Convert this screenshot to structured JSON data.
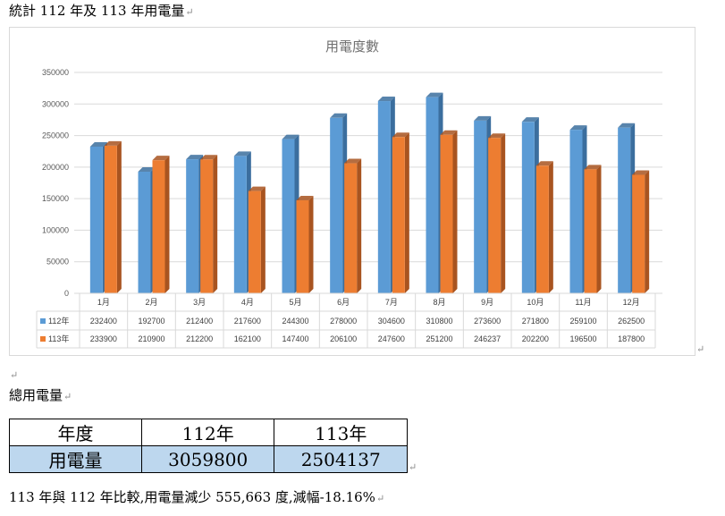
{
  "heading": "統計 112 年及 113 年用電量",
  "para_mark": "↵",
  "chart_data": {
    "type": "bar",
    "title": "用電度數",
    "categories": [
      "1月",
      "2月",
      "3月",
      "4月",
      "5月",
      "6月",
      "7月",
      "8月",
      "9月",
      "10月",
      "11月",
      "12月"
    ],
    "series": [
      {
        "name": "112年",
        "color": "#5b9bd5",
        "side_color": "#3b6e9e",
        "values": [
          232400,
          192700,
          212400,
          217600,
          244300,
          278000,
          304600,
          310800,
          273600,
          271800,
          259100,
          262500
        ]
      },
      {
        "name": "113年",
        "color": "#ed7d31",
        "side_color": "#a85420",
        "values": [
          233900,
          210900,
          212200,
          162100,
          147400,
          206100,
          247600,
          251200,
          246237,
          202200,
          196500,
          187800
        ]
      }
    ],
    "ylim": [
      0,
      350000
    ],
    "yticks": [
      0,
      50000,
      100000,
      150000,
      200000,
      250000,
      300000,
      350000
    ],
    "grid": true,
    "legend": "data-table"
  },
  "total_label": "總用電量",
  "summary_table": {
    "header": [
      "年度",
      "112年",
      "113年"
    ],
    "row": [
      "用電量",
      "3059800",
      "2504137"
    ]
  },
  "conclusion": "113 年與 112 年比較,用電量減少 555,663 度,減幅-18.16%"
}
